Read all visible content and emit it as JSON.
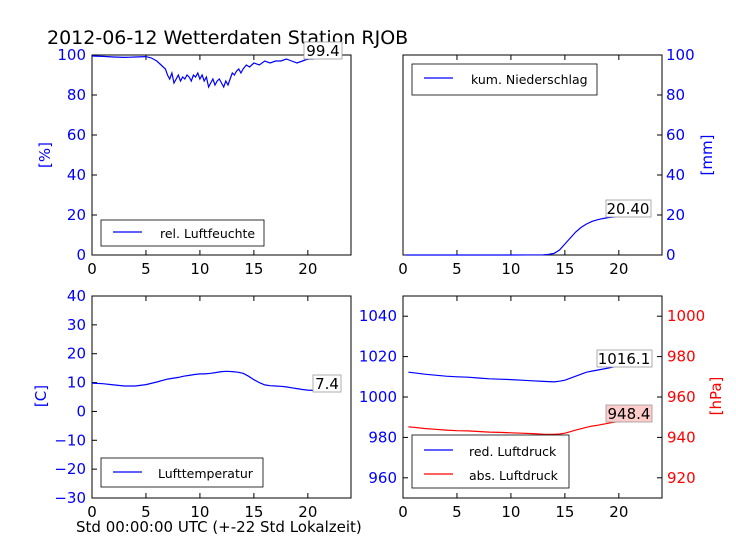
{
  "page_title": "2012-06-12 Wetterdaten Station RJOB",
  "xlabel": "Std 00:00:00 UTC (+-22 Std Lokalzeit)",
  "colors": {
    "blue": "#0000ff",
    "red": "#ff0000",
    "black": "#000000",
    "box_blue": "#ffffff",
    "box_red": "#ffcccc"
  },
  "chart_data": [
    {
      "type": "line",
      "id": "humidity",
      "xlim": [
        0,
        24
      ],
      "ylim": [
        0,
        100
      ],
      "x_ticks": [
        "0",
        "5",
        "10",
        "15",
        "20"
      ],
      "y_ticks": [
        "0",
        "20",
        "40",
        "60",
        "80",
        "100"
      ],
      "ylabel": "[%]",
      "series": [
        {
          "name": "rel. Luftfeuchte",
          "color": "#0000ff",
          "x": [
            0,
            1,
            2,
            3,
            4,
            5,
            5.5,
            6,
            6.4,
            6.8,
            7,
            7.2,
            7.4,
            7.6,
            7.8,
            8,
            8.2,
            8.4,
            8.6,
            8.8,
            9,
            9.2,
            9.4,
            9.6,
            9.8,
            10,
            10.2,
            10.4,
            10.6,
            10.8,
            11,
            11.2,
            11.4,
            11.6,
            11.8,
            12,
            12.2,
            12.4,
            12.6,
            12.8,
            13,
            13.2,
            13.4,
            13.6,
            13.8,
            14,
            14.3,
            14.6,
            15,
            15.5,
            16,
            16.5,
            17,
            17.5,
            18,
            18.5,
            19,
            19.5,
            20,
            20.5,
            21,
            21.5,
            22,
            22.5,
            23
          ],
          "y": [
            99.5,
            99.3,
            99,
            98.8,
            99,
            99.2,
            98.5,
            97,
            95,
            93,
            90,
            88,
            91,
            86,
            88,
            90,
            87,
            89,
            88,
            90,
            89,
            87,
            90,
            89,
            91,
            88,
            90,
            87,
            89,
            84,
            86,
            88,
            85,
            87,
            88,
            86,
            84,
            87,
            85,
            88,
            91,
            90,
            92,
            93,
            91,
            93,
            95,
            94,
            96,
            95,
            97,
            96,
            97,
            97,
            98,
            97,
            96,
            97,
            98,
            98,
            99,
            99,
            99.2,
            99.3,
            99.4
          ]
        }
      ],
      "legend": "lower-left",
      "annotation": "99.4"
    },
    {
      "type": "line",
      "id": "precipitation",
      "xlim": [
        0,
        24
      ],
      "ylim": [
        0,
        100
      ],
      "x_ticks": [
        "0",
        "5",
        "10",
        "15",
        "20"
      ],
      "y_ticks": [
        "0",
        "20",
        "40",
        "60",
        "80",
        "100"
      ],
      "ylabel": "[mm]",
      "series": [
        {
          "name": "kum. Niederschlag",
          "color": "#0000ff",
          "x": [
            0.3,
            5,
            10,
            13,
            13.5,
            14,
            14.5,
            15,
            15.5,
            16,
            16.5,
            17,
            17.5,
            18,
            18.5,
            19,
            20,
            21,
            22,
            23
          ],
          "y": [
            0,
            0,
            0,
            0.1,
            0.3,
            0.8,
            2.5,
            5.5,
            8.5,
            11.5,
            13.8,
            15.5,
            16.8,
            17.6,
            18.2,
            18.7,
            19.3,
            19.8,
            20.1,
            20.4
          ]
        }
      ],
      "legend": "upper-left",
      "annotation": "20.40"
    },
    {
      "type": "line",
      "id": "temperature",
      "xlim": [
        0,
        24
      ],
      "ylim": [
        -30,
        40
      ],
      "x_ticks": [
        "0",
        "5",
        "10",
        "15",
        "20"
      ],
      "y_ticks": [
        "−30",
        "−20",
        "−10",
        "0",
        "10",
        "20",
        "30",
        "40"
      ],
      "ylabel": "[C]",
      "series": [
        {
          "name": "Lufttemperatur",
          "color": "#0000ff",
          "x": [
            0,
            1,
            2,
            3,
            4,
            5,
            6,
            7,
            8,
            8.5,
            9,
            9.5,
            10,
            10.5,
            11,
            11.5,
            12,
            12.5,
            13,
            13.5,
            14,
            14.5,
            15,
            15.5,
            16,
            16.5,
            17,
            17.5,
            18,
            18.5,
            19,
            19.5,
            20,
            20.5,
            21,
            21.5,
            22,
            22.5,
            23
          ],
          "y": [
            9.8,
            9.6,
            9.2,
            8.8,
            8.8,
            9.3,
            10.2,
            11.2,
            11.8,
            12.2,
            12.5,
            12.8,
            13,
            13,
            13.2,
            13.5,
            13.8,
            13.9,
            13.8,
            13.6,
            13.2,
            12.2,
            11,
            10,
            9.2,
            8.9,
            8.8,
            8.7,
            8.5,
            8.2,
            7.9,
            7.6,
            7.4,
            7.3,
            7.3,
            7.2,
            7.3,
            7.4,
            7.4
          ]
        }
      ],
      "legend": "lower-left",
      "annotation": "7.4"
    },
    {
      "type": "line",
      "id": "pressure",
      "xlim": [
        0,
        24
      ],
      "ylim": [
        950,
        1050
      ],
      "ylim_right": [
        910,
        1010
      ],
      "x_ticks": [
        "0",
        "5",
        "10",
        "15",
        "20"
      ],
      "y_ticks": [
        "960",
        "980",
        "1000",
        "1020",
        "1040"
      ],
      "y_ticks_right": [
        "920",
        "940",
        "960",
        "980",
        "1000"
      ],
      "ylabel_right": "[hPa]",
      "series": [
        {
          "name": "red. Luftdruck",
          "color": "#0000ff",
          "axis": "left",
          "x": [
            0.5,
            1,
            2,
            3,
            4,
            5,
            6,
            7,
            8,
            9,
            10,
            11,
            12,
            13,
            14,
            14.5,
            15,
            15.5,
            16,
            16.5,
            17,
            17.5,
            18,
            18.5,
            19,
            19.5,
            20,
            20.5,
            21,
            21.5,
            22,
            22.5,
            23
          ],
          "y": [
            1012.3,
            1012,
            1011.3,
            1010.8,
            1010.3,
            1010,
            1009.8,
            1009.4,
            1009,
            1008.8,
            1008.6,
            1008.3,
            1008,
            1007.7,
            1007.5,
            1007.8,
            1008.3,
            1009.3,
            1010.3,
            1011.3,
            1012.3,
            1012.8,
            1013.3,
            1013.8,
            1014.3,
            1014.9,
            1015.5,
            1015.9,
            1016.1,
            1016.1,
            1016.1,
            1016.1,
            1016.1
          ]
        },
        {
          "name": "abs. Luftdruck",
          "color": "#ff0000",
          "axis": "right",
          "x": [
            0.5,
            1,
            2,
            3,
            4,
            5,
            6,
            7,
            8,
            9,
            10,
            11,
            12,
            13,
            14,
            14.5,
            15,
            15.5,
            16,
            16.5,
            17,
            17.5,
            18,
            18.5,
            19,
            19.5,
            20,
            20.5,
            21,
            21.5,
            22,
            22.5,
            23
          ],
          "y": [
            945.2,
            945,
            944.4,
            944,
            943.6,
            943.3,
            943.2,
            942.9,
            942.6,
            942.5,
            942.3,
            942.1,
            941.9,
            941.6,
            941.5,
            941.7,
            942.1,
            942.8,
            943.6,
            944.3,
            945,
            945.6,
            946,
            946.5,
            947,
            947.5,
            947.9,
            948.2,
            948.4,
            948.4,
            948.4,
            948.4,
            948.4
          ]
        }
      ],
      "legend": "lower-left",
      "annotations": [
        "1016.1",
        "948.4"
      ]
    }
  ]
}
